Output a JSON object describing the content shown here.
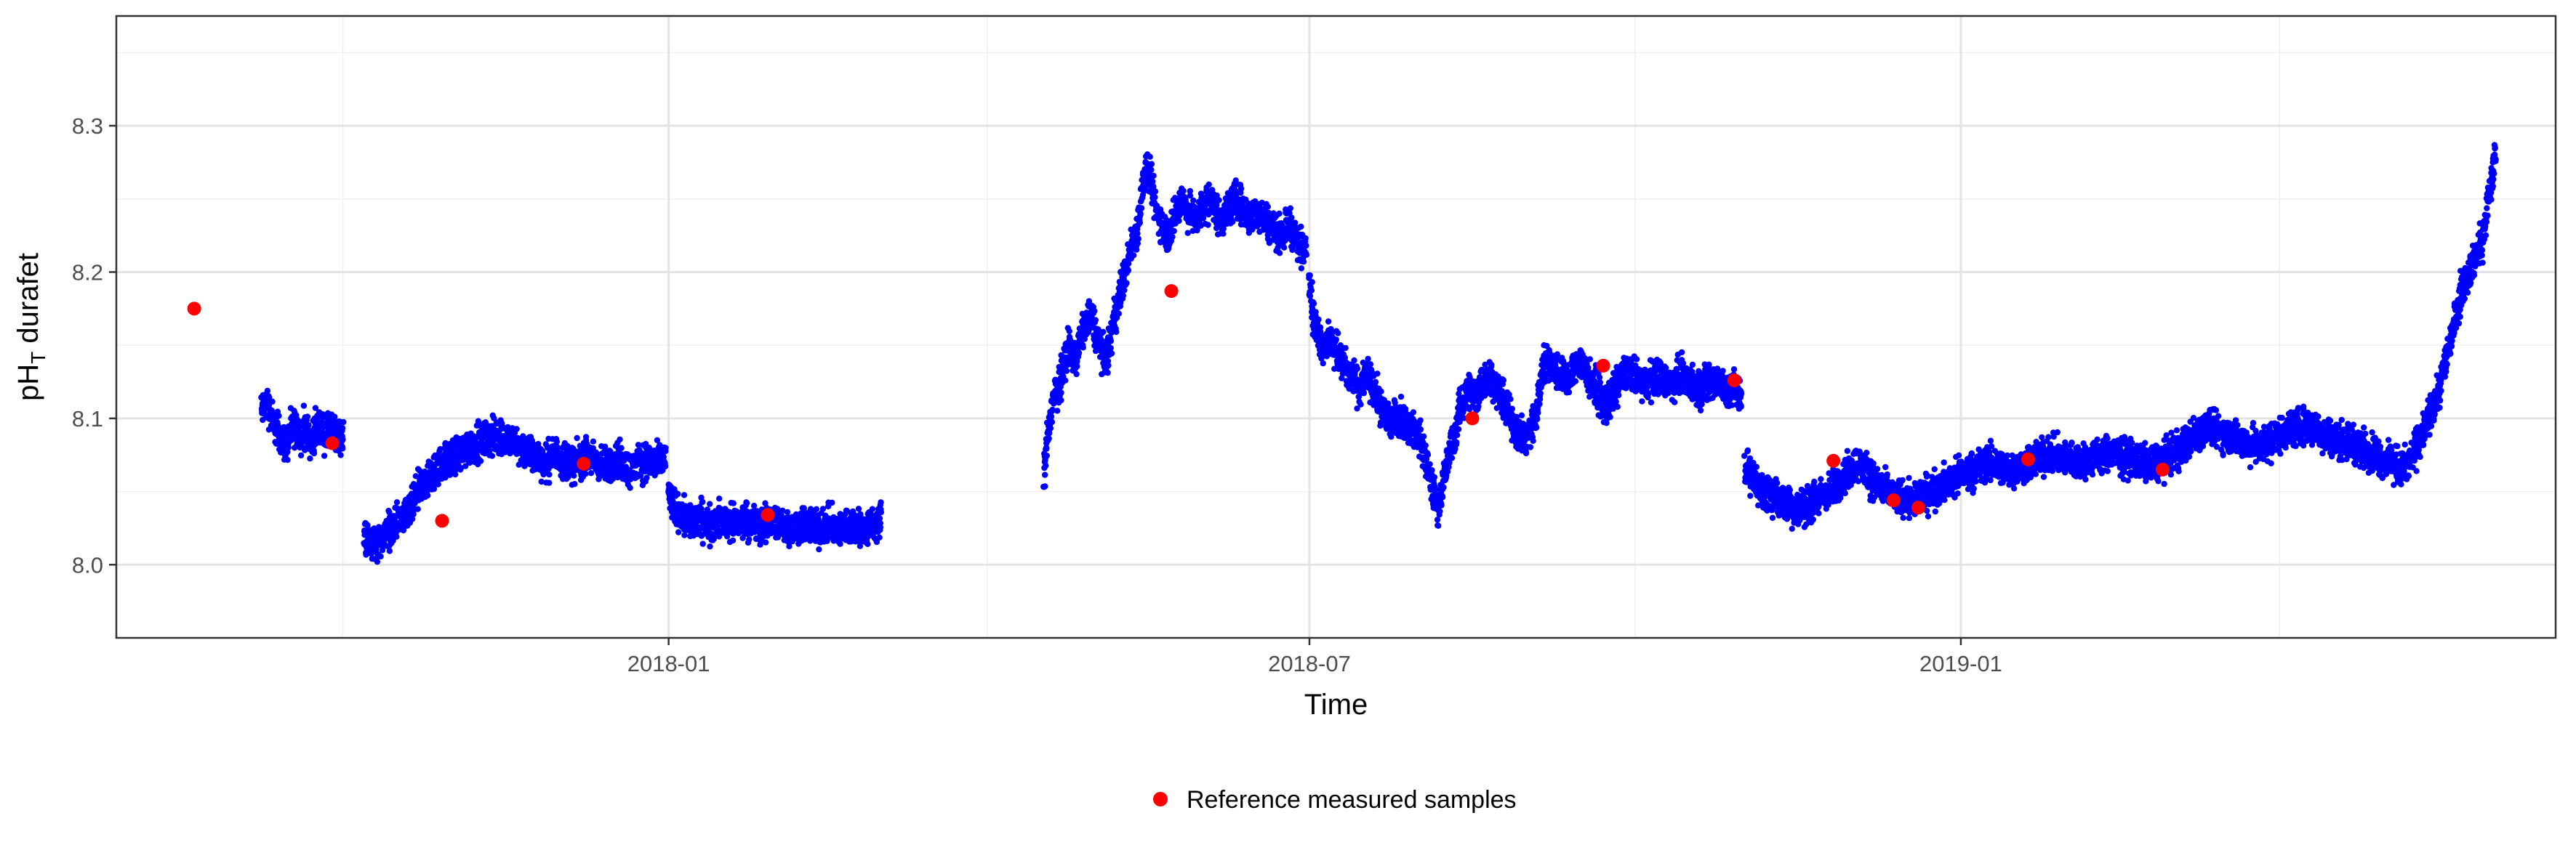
{
  "chart_data": {
    "type": "scatter",
    "xlabel": "Time",
    "ylabel": "pH",
    "ylabel_subscript": "T",
    "ylabel_suffix": " durafet",
    "xlim": [
      "2017-07-29",
      "2019-06-18"
    ],
    "ylim": [
      7.95,
      8.375
    ],
    "x_ticks": [
      {
        "date": "2018-01-01",
        "label": "2018-01"
      },
      {
        "date": "2018-07-01",
        "label": "2018-07"
      },
      {
        "date": "2019-01-01",
        "label": "2019-01"
      }
    ],
    "x_minor_ticks": [
      "2017-10-01",
      "2018-04-01",
      "2018-10-01",
      "2019-04-01"
    ],
    "y_ticks": [
      8.0,
      8.1,
      8.2,
      8.3
    ],
    "grid": true,
    "legend_position": "bottom",
    "series": [
      {
        "key": "durafet",
        "color": "#0000ff",
        "segments": [
          {
            "start": "2017-09-08",
            "end": "2017-10-01",
            "values": [
              8.105,
              8.11,
              8.108,
              8.1,
              8.095,
              8.09,
              8.085,
              8.082,
              8.088,
              8.094,
              8.092,
              8.09,
              8.095,
              8.088,
              8.085,
              8.09,
              8.095,
              8.093,
              8.088,
              8.09,
              8.092,
              8.087,
              8.09,
              8.085
            ]
          },
          {
            "start": "2017-10-07",
            "end": "2017-12-31",
            "values": [
              8.02,
              8.018,
              8.015,
              8.012,
              8.018,
              8.02,
              8.025,
              8.022,
              8.03,
              8.028,
              8.03,
              8.035,
              8.04,
              8.048,
              8.052,
              8.055,
              8.058,
              8.06,
              8.065,
              8.068,
              8.07,
              8.072,
              8.074,
              8.075,
              8.076,
              8.078,
              8.08,
              8.082,
              8.083,
              8.084,
              8.085,
              8.086,
              8.087,
              8.088,
              8.088,
              8.086,
              8.085,
              8.084,
              8.082,
              8.08,
              8.078,
              8.076,
              8.075,
              8.074,
              8.072,
              8.07,
              8.072,
              8.074,
              8.075,
              8.073,
              8.072,
              8.07,
              8.068,
              8.07,
              8.072,
              8.074,
              8.073,
              8.072,
              8.07,
              8.068,
              8.067,
              8.068,
              8.07,
              8.072,
              8.07,
              8.068,
              8.065,
              8.066,
              8.068,
              8.07,
              8.072,
              8.07,
              8.069,
              8.068,
              8.07,
              8.072
            ]
          },
          {
            "start": "2018-01-01",
            "end": "2018-03-02",
            "values": [
              8.05,
              8.042,
              8.038,
              8.035,
              8.033,
              8.032,
              8.03,
              8.028,
              8.03,
              8.032,
              8.03,
              8.028,
              8.027,
              8.029,
              8.03,
              8.031,
              8.03,
              8.029,
              8.028,
              8.027,
              8.028,
              8.03,
              8.031,
              8.03,
              8.028,
              8.027,
              8.026,
              8.027,
              8.028,
              8.029,
              8.03,
              8.029,
              8.028,
              8.027,
              8.026,
              8.025,
              8.026,
              8.027,
              8.028,
              8.027,
              8.026,
              8.025,
              8.024,
              8.025,
              8.026,
              8.027,
              8.026,
              8.025,
              8.024,
              8.024,
              8.025,
              8.026,
              8.027,
              8.026,
              8.025,
              8.024,
              8.025,
              8.026,
              8.027,
              8.028,
              8.03
            ]
          },
          {
            "start": "2018-04-17",
            "end": "2018-06-30",
            "values": [
              8.06,
              8.09,
              8.1,
              8.115,
              8.12,
              8.13,
              8.14,
              8.15,
              8.145,
              8.14,
              8.15,
              8.16,
              8.165,
              8.17,
              8.165,
              8.155,
              8.15,
              8.14,
              8.145,
              8.155,
              8.17,
              8.18,
              8.19,
              8.2,
              8.21,
              8.22,
              8.225,
              8.24,
              8.26,
              8.27,
              8.265,
              8.25,
              8.24,
              8.235,
              8.23,
              8.225,
              8.23,
              8.24,
              8.245,
              8.25,
              8.245,
              8.24,
              8.238,
              8.236,
              8.24,
              8.245,
              8.248,
              8.25,
              8.245,
              8.24,
              8.235,
              8.238,
              8.242,
              8.246,
              8.25,
              8.248,
              8.245,
              8.24,
              8.238,
              8.236,
              8.24,
              8.242,
              8.238,
              8.235,
              8.232,
              8.23,
              8.228,
              8.225,
              8.23,
              8.232,
              8.23,
              8.225,
              8.22,
              8.215,
              8.22
            ]
          },
          {
            "start": "2018-07-01",
            "end": "2018-10-31",
            "values": [
              8.2,
              8.17,
              8.16,
              8.155,
              8.15,
              8.152,
              8.15,
              8.148,
              8.145,
              8.14,
              8.135,
              8.13,
              8.128,
              8.125,
              8.12,
              8.125,
              8.13,
              8.125,
              8.12,
              8.115,
              8.11,
              8.105,
              8.1,
              8.098,
              8.1,
              8.102,
              8.1,
              8.098,
              8.095,
              8.092,
              8.09,
              8.085,
              8.08,
              8.07,
              8.06,
              8.05,
              8.04,
              8.045,
              8.06,
              8.07,
              8.08,
              8.09,
              8.1,
              8.11,
              8.115,
              8.12,
              8.118,
              8.115,
              8.12,
              8.125,
              8.128,
              8.13,
              8.125,
              8.12,
              8.115,
              8.11,
              8.105,
              8.1,
              8.095,
              8.09,
              8.088,
              8.086,
              8.09,
              8.095,
              8.1,
              8.12,
              8.135,
              8.14,
              8.138,
              8.135,
              8.132,
              8.13,
              8.128,
              8.126,
              8.13,
              8.135,
              8.14,
              8.138,
              8.132,
              8.128,
              8.125,
              8.12,
              8.115,
              8.11,
              8.108,
              8.112,
              8.118,
              8.122,
              8.128,
              8.13,
              8.132,
              8.13,
              8.128,
              8.126,
              8.125,
              8.124,
              8.126,
              8.128,
              8.13,
              8.128,
              8.126,
              8.125,
              8.124,
              8.126,
              8.128,
              8.13,
              8.128,
              8.126,
              8.124,
              8.122,
              8.12,
              8.122,
              8.124,
              8.126,
              8.128,
              8.126,
              8.124,
              8.12,
              8.118,
              8.12,
              8.122,
              8.12,
              8.115
            ]
          },
          {
            "start": "2018-11-01",
            "end": "2019-06-01",
            "values": [
              8.07,
              8.06,
              8.055,
              8.05,
              8.048,
              8.045,
              8.042,
              8.04,
              8.038,
              8.04,
              8.042,
              8.045,
              8.048,
              8.05,
              8.055,
              8.06,
              8.065,
              8.07,
              8.065,
              8.06,
              8.055,
              8.05,
              8.048,
              8.046,
              8.045,
              8.044,
              8.046,
              8.048,
              8.05,
              8.052,
              8.055,
              8.058,
              8.06,
              8.062,
              8.064,
              8.066,
              8.068,
              8.07,
              8.068,
              8.066,
              8.065,
              8.066,
              8.068,
              8.07,
              8.072,
              8.074,
              8.075,
              8.074,
              8.073,
              8.072,
              8.071,
              8.07,
              8.072,
              8.074,
              8.075,
              8.076,
              8.075,
              8.074,
              8.073,
              8.072,
              8.07,
              8.068,
              8.07,
              8.072,
              8.075,
              8.078,
              8.08,
              8.085,
              8.09,
              8.092,
              8.094,
              8.092,
              8.09,
              8.088,
              8.086,
              8.084,
              8.082,
              8.08,
              8.082,
              8.085,
              8.088,
              8.09,
              8.092,
              8.094,
              8.095,
              8.094,
              8.092,
              8.09,
              8.088,
              8.086,
              8.085,
              8.084,
              8.082,
              8.08,
              8.078,
              8.075,
              8.072,
              8.07,
              8.068,
              8.066,
              8.07,
              8.08,
              8.09,
              8.1,
              8.11,
              8.13,
              8.15,
              8.17,
              8.19,
              8.2,
              8.21,
              8.22,
              8.25,
              8.28
            ]
          }
        ]
      },
      {
        "key": "reference",
        "name": "Reference measured samples",
        "color": "#ff0000",
        "points": [
          {
            "x": "2017-08-20",
            "y": 8.175
          },
          {
            "x": "2017-09-28",
            "y": 8.083
          },
          {
            "x": "2017-10-29",
            "y": 8.03
          },
          {
            "x": "2017-12-08",
            "y": 8.069
          },
          {
            "x": "2018-01-29",
            "y": 8.034
          },
          {
            "x": "2018-05-23",
            "y": 8.187
          },
          {
            "x": "2018-08-16",
            "y": 8.1
          },
          {
            "x": "2018-09-22",
            "y": 8.136
          },
          {
            "x": "2018-10-29",
            "y": 8.126
          },
          {
            "x": "2018-11-26",
            "y": 8.071
          },
          {
            "x": "2018-12-20",
            "y": 8.039
          },
          {
            "x": "2018-12-13",
            "y": 8.044
          },
          {
            "x": "2019-01-20",
            "y": 8.072
          },
          {
            "x": "2019-02-27",
            "y": 8.065
          }
        ]
      }
    ]
  }
}
